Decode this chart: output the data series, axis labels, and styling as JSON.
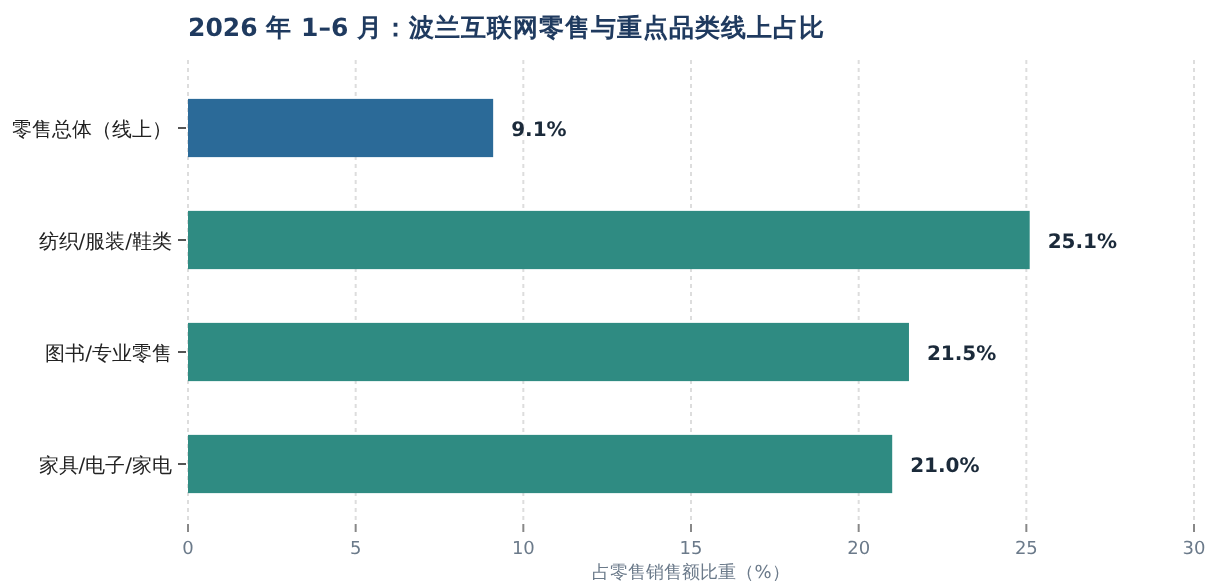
{
  "chart_data": {
    "type": "bar",
    "orientation": "horizontal",
    "title": "2026 年 1–6 月：波兰互联网零售与重点品类线上占比",
    "xlabel": "占零售销售额比重（%）",
    "categories": [
      "零售总体（线上）",
      "纺织/服装/鞋类",
      "图书/专业零售",
      "家具/电子/家电"
    ],
    "values": [
      9.1,
      25.1,
      21.5,
      21.0
    ],
    "colors": [
      "#2b6a98",
      "#2f8b82",
      "#2f8b82",
      "#2f8b82"
    ],
    "value_labels": [
      "9.1%",
      "25.1%",
      "21.5%",
      "21.0%"
    ],
    "xlim": [
      0,
      30
    ],
    "xticks": [
      0,
      5,
      10,
      15,
      20,
      25,
      30
    ],
    "grid": "x"
  }
}
